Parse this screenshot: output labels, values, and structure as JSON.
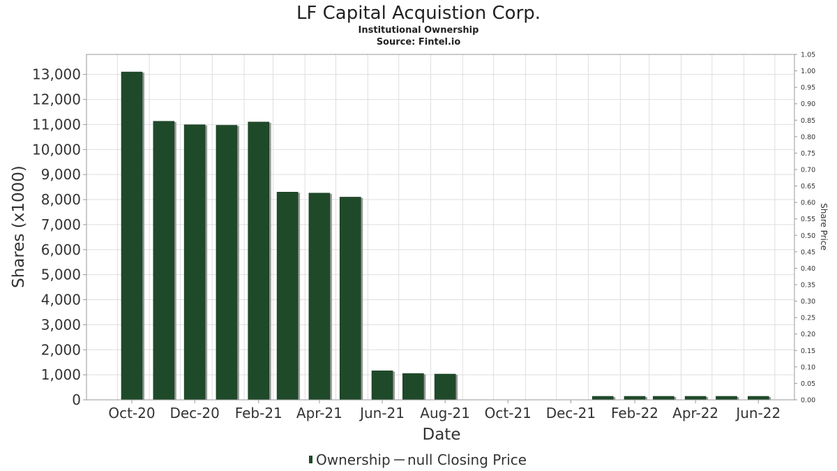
{
  "chart_data": {
    "type": "bar",
    "title": "LF Capital Acquistion Corp.",
    "subtitle": "Institutional Ownership",
    "source": "Source: Fintel.io",
    "xlabel": "Date",
    "ylabel": "Shares (x1000)",
    "y2label": "Share Price",
    "ylim": [
      0,
      13800
    ],
    "y2lim": [
      0,
      1.05
    ],
    "yticks": [
      0,
      1000,
      2000,
      3000,
      4000,
      5000,
      6000,
      7000,
      8000,
      9000,
      10000,
      11000,
      12000,
      13000
    ],
    "ytick_labels": [
      "0",
      "1,000",
      "2,000",
      "3,000",
      "4,000",
      "5,000",
      "6,000",
      "7,000",
      "8,000",
      "9,000",
      "10,000",
      "11,000",
      "12,000",
      "13,000"
    ],
    "y2tick_labels": [
      "0.00",
      "0.05",
      "0.10",
      "0.15",
      "0.20",
      "0.25",
      "0.30",
      "0.35",
      "0.40",
      "0.45",
      "0.50",
      "0.55",
      "0.60",
      "0.65",
      "0.70",
      "0.75",
      "0.80",
      "0.85",
      "0.90",
      "0.95",
      "1.00",
      "1.05"
    ],
    "xtick_labels": [
      "Oct-20",
      "Dec-20",
      "Feb-21",
      "Apr-21",
      "Jun-21",
      "Aug-21",
      "Oct-21",
      "Dec-21",
      "Feb-22",
      "Apr-22",
      "Jun-22"
    ],
    "grid": true,
    "bar_color": "#1f4a2a",
    "series": [
      {
        "name": "Ownership",
        "x": [
          "2020-10-15",
          "2020-11-15",
          "2020-12-15",
          "2021-01-15",
          "2021-02-15",
          "2021-03-15",
          "2021-04-15",
          "2021-05-15",
          "2021-06-15",
          "2021-07-15",
          "2021-08-15",
          "2021-09-15",
          "2021-10-15",
          "2021-11-15",
          "2021-12-15",
          "2022-01-15",
          "2022-02-15",
          "2022-03-15",
          "2022-04-15",
          "2022-05-15",
          "2022-06-15"
        ],
        "values": [
          13100,
          11130,
          10990,
          10970,
          11100,
          8300,
          8260,
          8100,
          1160,
          1050,
          1030,
          0,
          0,
          0,
          0,
          140,
          140,
          140,
          140,
          140,
          140
        ]
      }
    ],
    "legend": {
      "placement": "bottom",
      "items": [
        "Ownership",
        "null Closing Price"
      ]
    }
  }
}
